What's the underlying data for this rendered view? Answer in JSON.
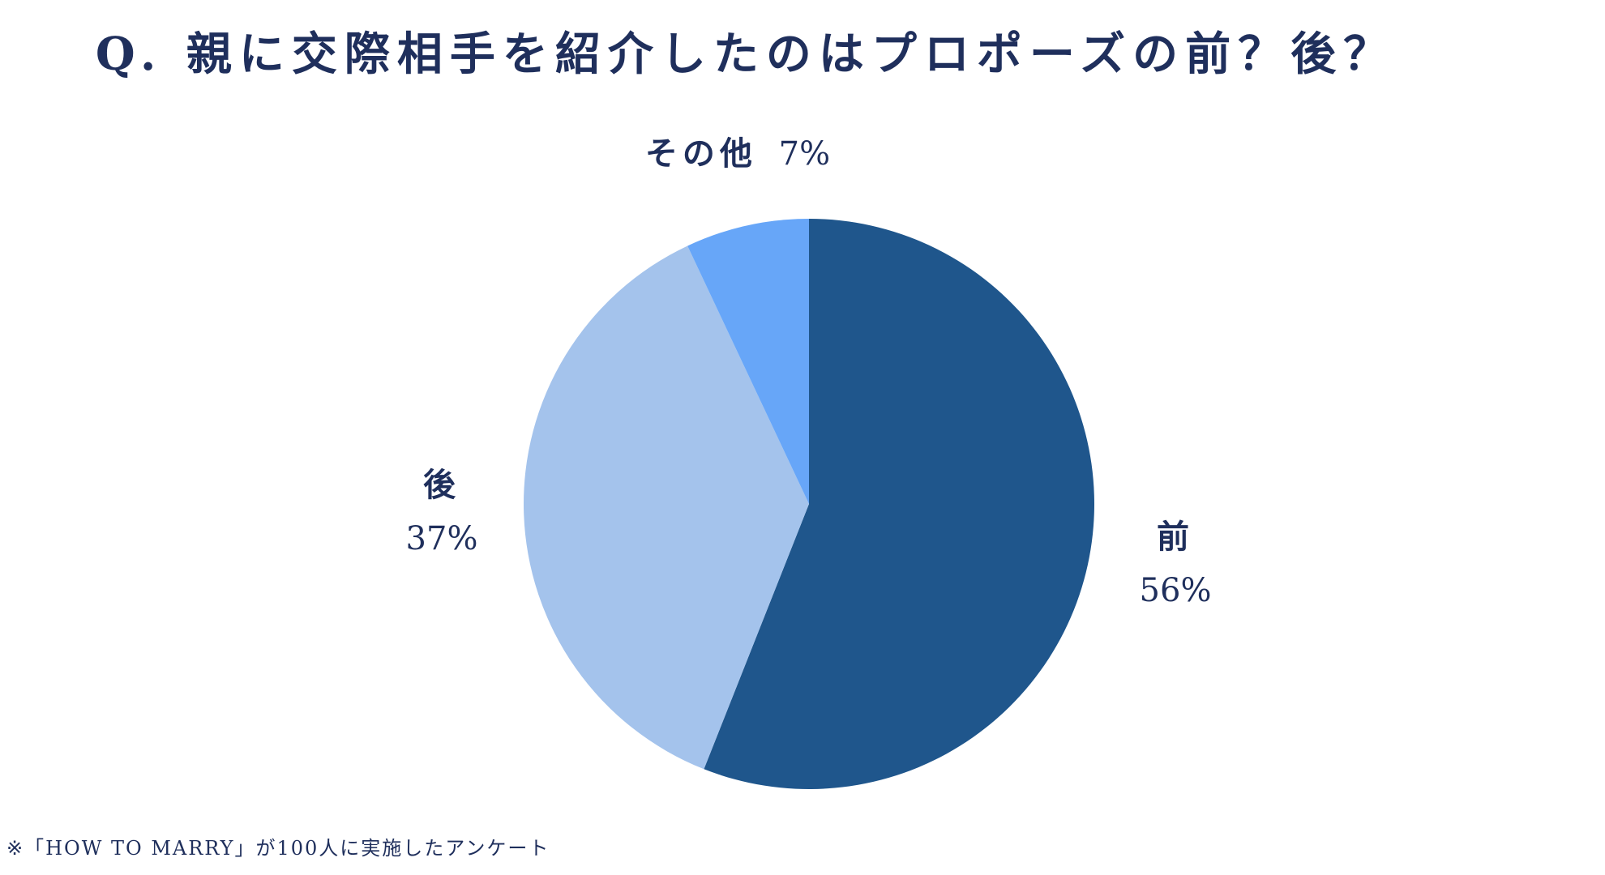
{
  "title": "Q. 親に交際相手を紹介したのはプロポーズの前？後？",
  "footnote": "※「HOW TO MARRY」が100人に実施したアンケート",
  "chart_data": {
    "type": "pie",
    "title": "Q. 親に交際相手を紹介したのはプロポーズの前？後？",
    "slices": [
      {
        "name": "前",
        "value": 56,
        "label": "56%",
        "color": "#1f568c"
      },
      {
        "name": "後",
        "value": 37,
        "label": "37%",
        "color": "#a4c3ec"
      },
      {
        "name": "その他",
        "value": 7,
        "label": "7%",
        "color": "#67a6f8"
      }
    ],
    "start": "12 o'clock",
    "direction": "clockwise",
    "legend": "none"
  }
}
